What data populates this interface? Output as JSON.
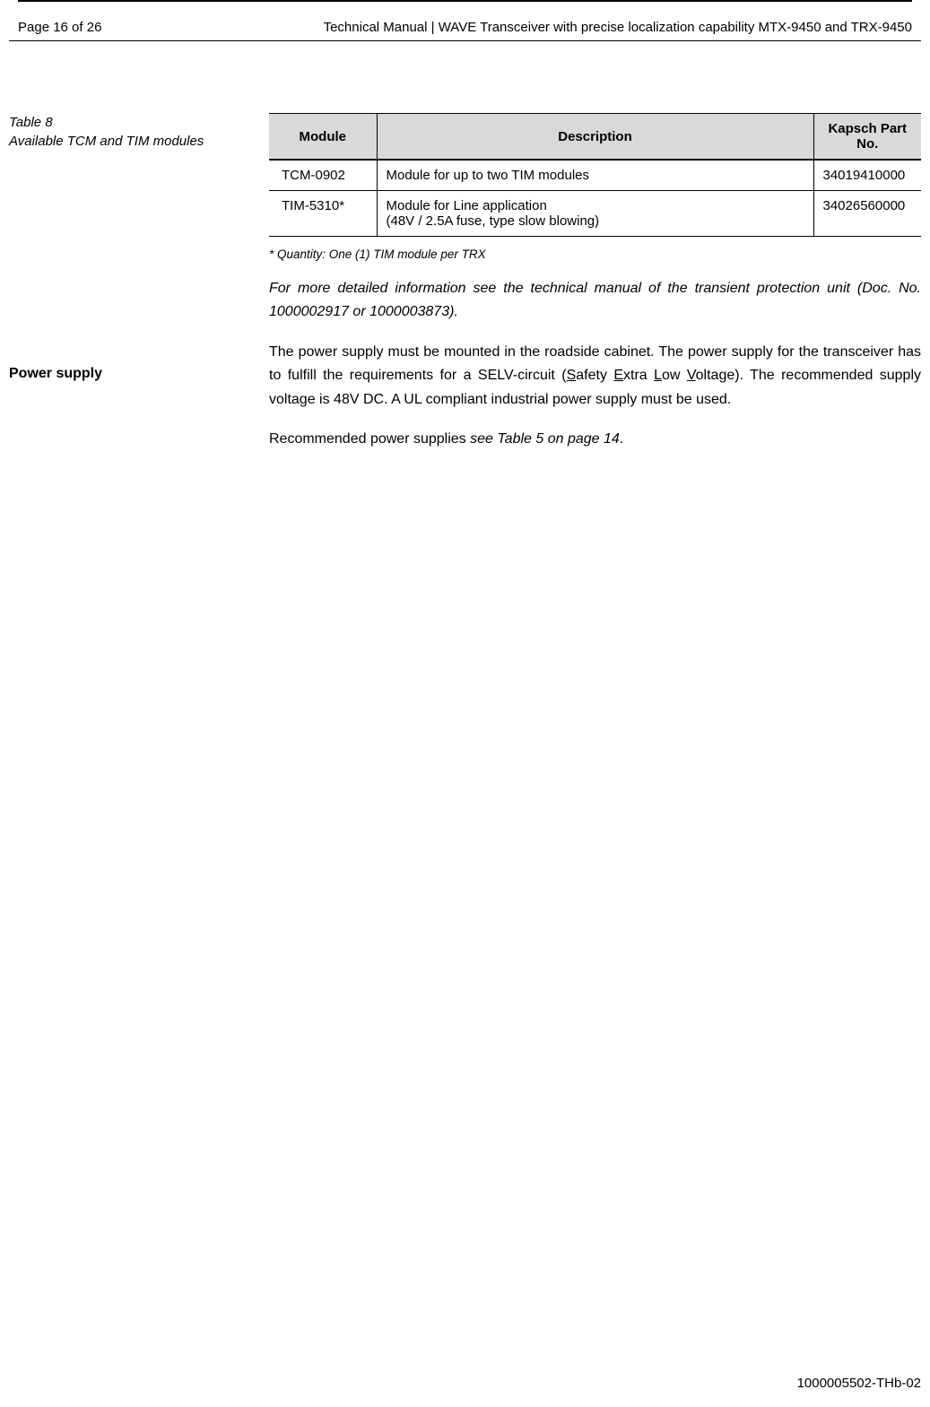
{
  "header": {
    "page_label": "Page 16 of 26",
    "doc_title": "Technical Manual | WAVE Transceiver with precise localization capability MTX-9450 and TRX-9450"
  },
  "sidebar": {
    "table_label_line1": "Table 8",
    "table_label_line2": "Available TCM and TIM modules",
    "section_heading": "Power supply"
  },
  "table": {
    "columns": {
      "c1": "Module",
      "c2": "Description",
      "c3": "Kapsch Part No."
    },
    "rows": [
      {
        "module": "TCM-0902",
        "desc": "Module for up to two TIM modules",
        "part": "34019410000"
      },
      {
        "module": "TIM-5310*",
        "desc": "Module for Line application\n(48V / 2.5A fuse, type slow blowing)",
        "part": "34026560000"
      }
    ],
    "footnote": "* Quantity: One (1) TIM module per TRX"
  },
  "paragraphs": {
    "p1": "For more detailed information see the technical manual of the transient protection unit (Doc. No. 1000002917 or 1000003873).",
    "p2_pre": "The power supply must be mounted in the roadside cabinet. The power supply for the transceiver has to fulfill the requirements for a SELV-circuit (",
    "p2_s": "S",
    "p2_s2": "afety ",
    "p2_e": "E",
    "p2_e2": "xtra ",
    "p2_l": "L",
    "p2_l2": "ow ",
    "p2_v": "V",
    "p2_v2": "oltage). The recommended supply voltage is 48V DC. A UL compliant industrial power supply must be used.",
    "p3_a": "Recommended power supplies ",
    "p3_b": "see Table 5 on page 14",
    "p3_c": "."
  },
  "footer": {
    "doc_number": "1000005502-THb-02"
  }
}
